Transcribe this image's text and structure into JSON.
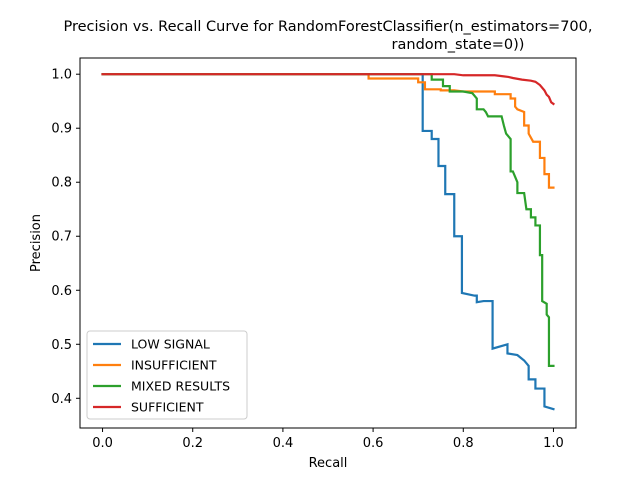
{
  "chart_data": {
    "type": "line",
    "title_line1": "Precision vs. Recall Curve for RandomForestClassifier(n_estimators=700,",
    "title_line2": "random_state=0))",
    "xlabel": "Recall",
    "ylabel": "Precision",
    "xlim": [
      -0.05,
      1.05
    ],
    "ylim": [
      0.345,
      1.03
    ],
    "xticks": [
      0.0,
      0.2,
      0.4,
      0.6,
      0.8,
      1.0
    ],
    "xtick_labels": [
      "0.0",
      "0.2",
      "0.4",
      "0.6",
      "0.8",
      "1.0"
    ],
    "yticks": [
      0.4,
      0.5,
      0.6,
      0.7,
      0.8,
      0.9,
      1.0
    ],
    "ytick_labels": [
      "0.4",
      "0.5",
      "0.6",
      "0.7",
      "0.8",
      "0.9",
      "1.0"
    ],
    "grid": false,
    "legend_position": "lower-left",
    "series": [
      {
        "name": "LOW SIGNAL",
        "color": "#1f77b4",
        "points": [
          [
            0.0,
            1.0
          ],
          [
            0.71,
            1.0
          ],
          [
            0.71,
            0.895
          ],
          [
            0.73,
            0.895
          ],
          [
            0.73,
            0.88
          ],
          [
            0.745,
            0.88
          ],
          [
            0.745,
            0.83
          ],
          [
            0.76,
            0.83
          ],
          [
            0.76,
            0.778
          ],
          [
            0.78,
            0.778
          ],
          [
            0.78,
            0.7
          ],
          [
            0.797,
            0.7
          ],
          [
            0.797,
            0.595
          ],
          [
            0.825,
            0.59
          ],
          [
            0.83,
            0.59
          ],
          [
            0.83,
            0.578
          ],
          [
            0.845,
            0.58
          ],
          [
            0.865,
            0.58
          ],
          [
            0.865,
            0.492
          ],
          [
            0.898,
            0.5
          ],
          [
            0.898,
            0.483
          ],
          [
            0.92,
            0.48
          ],
          [
            0.935,
            0.47
          ],
          [
            0.945,
            0.46
          ],
          [
            0.945,
            0.435
          ],
          [
            0.96,
            0.435
          ],
          [
            0.96,
            0.418
          ],
          [
            0.98,
            0.418
          ],
          [
            0.98,
            0.385
          ],
          [
            1.0,
            0.38
          ]
        ]
      },
      {
        "name": "INSUFFICIENT",
        "color": "#ff7f0e",
        "points": [
          [
            0.0,
            1.0
          ],
          [
            0.59,
            1.0
          ],
          [
            0.59,
            0.992
          ],
          [
            0.7,
            0.992
          ],
          [
            0.7,
            0.985
          ],
          [
            0.715,
            0.985
          ],
          [
            0.715,
            0.972
          ],
          [
            0.75,
            0.972
          ],
          [
            0.75,
            0.97
          ],
          [
            0.78,
            0.97
          ],
          [
            0.8,
            0.968
          ],
          [
            0.855,
            0.968
          ],
          [
            0.87,
            0.968
          ],
          [
            0.87,
            0.963
          ],
          [
            0.905,
            0.963
          ],
          [
            0.905,
            0.955
          ],
          [
            0.915,
            0.955
          ],
          [
            0.915,
            0.94
          ],
          [
            0.92,
            0.935
          ],
          [
            0.935,
            0.93
          ],
          [
            0.935,
            0.905
          ],
          [
            0.945,
            0.905
          ],
          [
            0.945,
            0.89
          ],
          [
            0.955,
            0.875
          ],
          [
            0.97,
            0.875
          ],
          [
            0.97,
            0.845
          ],
          [
            0.98,
            0.845
          ],
          [
            0.98,
            0.815
          ],
          [
            0.99,
            0.815
          ],
          [
            0.99,
            0.79
          ],
          [
            1.0,
            0.79
          ]
        ]
      },
      {
        "name": "MIXED RESULTS",
        "color": "#2ca02c",
        "points": [
          [
            0.0,
            1.0
          ],
          [
            0.73,
            1.0
          ],
          [
            0.73,
            0.99
          ],
          [
            0.755,
            0.99
          ],
          [
            0.755,
            0.978
          ],
          [
            0.77,
            0.978
          ],
          [
            0.77,
            0.968
          ],
          [
            0.8,
            0.968
          ],
          [
            0.82,
            0.965
          ],
          [
            0.825,
            0.96
          ],
          [
            0.83,
            0.955
          ],
          [
            0.83,
            0.935
          ],
          [
            0.845,
            0.935
          ],
          [
            0.85,
            0.93
          ],
          [
            0.855,
            0.922
          ],
          [
            0.885,
            0.922
          ],
          [
            0.89,
            0.905
          ],
          [
            0.895,
            0.89
          ],
          [
            0.9,
            0.885
          ],
          [
            0.905,
            0.88
          ],
          [
            0.905,
            0.82
          ],
          [
            0.91,
            0.82
          ],
          [
            0.915,
            0.81
          ],
          [
            0.92,
            0.8
          ],
          [
            0.92,
            0.78
          ],
          [
            0.935,
            0.78
          ],
          [
            0.94,
            0.75
          ],
          [
            0.95,
            0.75
          ],
          [
            0.95,
            0.735
          ],
          [
            0.96,
            0.735
          ],
          [
            0.96,
            0.72
          ],
          [
            0.97,
            0.72
          ],
          [
            0.97,
            0.665
          ],
          [
            0.975,
            0.665
          ],
          [
            0.975,
            0.58
          ],
          [
            0.985,
            0.575
          ],
          [
            0.985,
            0.555
          ],
          [
            0.99,
            0.55
          ],
          [
            0.99,
            0.46
          ],
          [
            1.0,
            0.46
          ]
        ]
      },
      {
        "name": "SUFFICIENT",
        "color": "#d62728",
        "points": [
          [
            0.0,
            1.0
          ],
          [
            0.78,
            1.0
          ],
          [
            0.8,
            0.998
          ],
          [
            0.87,
            0.998
          ],
          [
            0.89,
            0.996
          ],
          [
            0.9,
            0.995
          ],
          [
            0.91,
            0.993
          ],
          [
            0.93,
            0.99
          ],
          [
            0.95,
            0.988
          ],
          [
            0.96,
            0.986
          ],
          [
            0.97,
            0.98
          ],
          [
            0.98,
            0.97
          ],
          [
            0.985,
            0.962
          ],
          [
            0.99,
            0.958
          ],
          [
            0.995,
            0.948
          ],
          [
            1.0,
            0.945
          ]
        ]
      }
    ]
  }
}
